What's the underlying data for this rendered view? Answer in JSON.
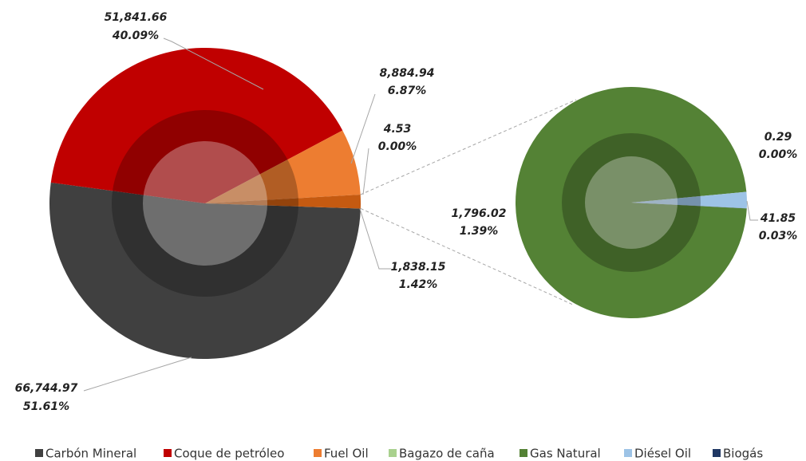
{
  "chart_data": {
    "type": "pie-of-pie",
    "main": {
      "categories": [
        "Carbón Mineral",
        "Coque de petróleo",
        "Fuel Oil",
        "Bagazo de caña"
      ],
      "values": [
        66744.97,
        51841.66,
        8884.94,
        4.53
      ],
      "value_labels": [
        "66,744.97",
        "51,841.66",
        "8,884.94",
        "4.53"
      ],
      "percents": [
        51.61,
        40.09,
        6.87,
        0.0
      ],
      "percent_labels": [
        "51.61%",
        "40.09%",
        "6.87%",
        "0.00%"
      ],
      "colors": [
        "#404040",
        "#c00000",
        "#ed7d31",
        "#a9d18e"
      ],
      "other_value": 1838.15,
      "other_value_label": "1,838.15",
      "other_percent": 1.42,
      "other_percent_label": "1.42%",
      "other_color": "#c55a11"
    },
    "secondary": {
      "categories": [
        "Gas Natural",
        "Diésel Oil",
        "Biogás"
      ],
      "values": [
        1796.02,
        41.85,
        0.29
      ],
      "value_labels": [
        "1,796.02",
        "41.85",
        "0.29"
      ],
      "percents": [
        1.39,
        0.03,
        0.0
      ],
      "percent_labels": [
        "1.39%",
        "0.03%",
        "0.00%"
      ],
      "colors": [
        "#548235",
        "#9dc3e6",
        "#203864"
      ]
    }
  }
}
